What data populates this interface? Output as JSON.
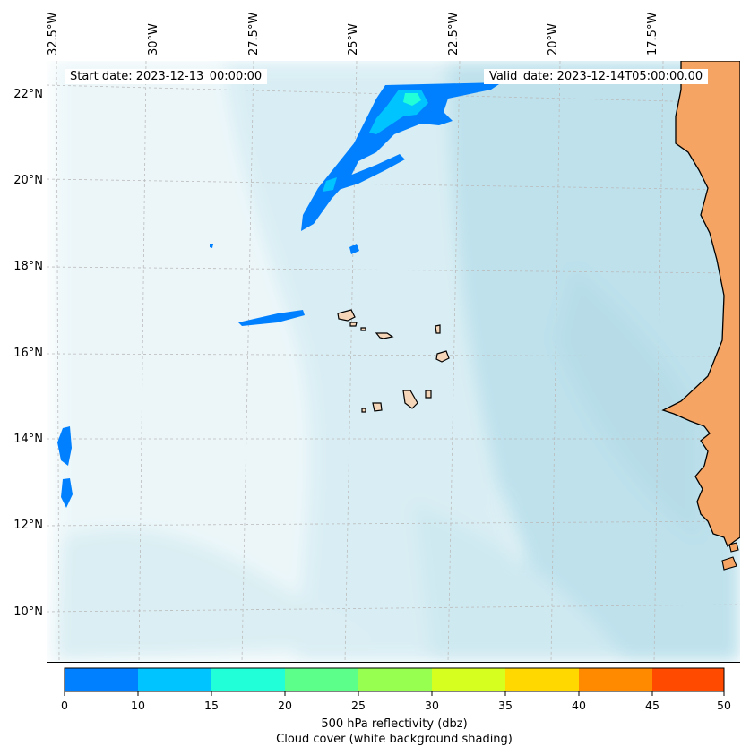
{
  "map": {
    "start_label": "Start date: 2023-12-13_00:00:00",
    "valid_label": "Valid_date: 2023-12-14T05:00:00.00",
    "lon_labels": [
      "32.5°W",
      "30°W",
      "27.5°W",
      "25°W",
      "22.5°W",
      "20°W",
      "17.5°W"
    ],
    "lat_labels": [
      "22°N",
      "20°N",
      "18°N",
      "16°N",
      "14°N",
      "12°N",
      "10°N"
    ],
    "land_color": "#f5a463",
    "island_color": "#f6d6b9",
    "cloud_color": "#b9dfe8",
    "extent": {
      "lon_min": -33.2,
      "lon_max": -15.5,
      "lat_min": 8.9,
      "lat_max": 22.8
    }
  },
  "colorbar": {
    "ticks": [
      "0",
      "10",
      "15",
      "20",
      "25",
      "30",
      "35",
      "40",
      "45",
      "50"
    ],
    "colors": [
      "#0080ff",
      "#00c4ff",
      "#20ffd8",
      "#5cff8a",
      "#96ff50",
      "#d6ff20",
      "#ffd800",
      "#ff8a00",
      "#ff4a00"
    ],
    "label_line1": "500 hPa reflectivity (dbz)",
    "label_line2": "Cloud cover (white background shading)"
  }
}
